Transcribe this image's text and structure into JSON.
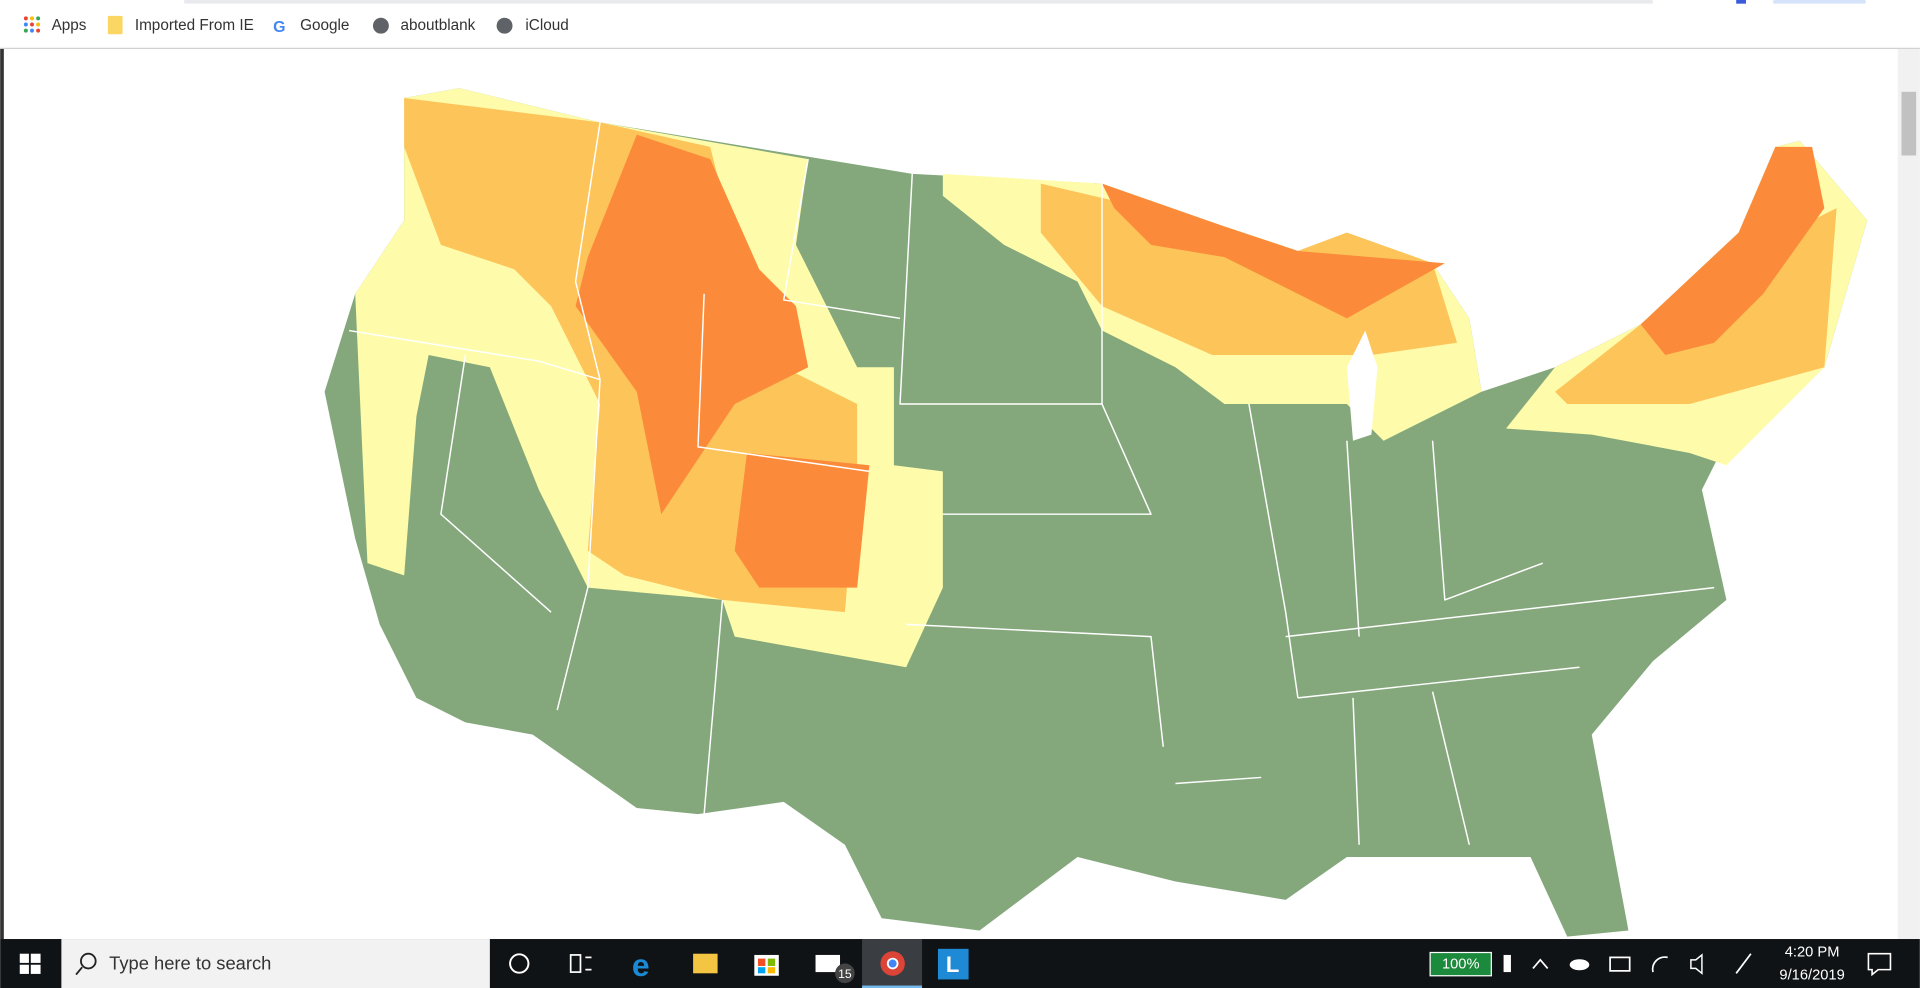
{
  "bookmarks": [
    {
      "label": "Apps"
    },
    {
      "label": "Imported From IE"
    },
    {
      "label": "Google"
    },
    {
      "label": "aboutblank"
    },
    {
      "label": "iCloud"
    }
  ],
  "taskbar": {
    "search_placeholder": "Type here to search",
    "badge": "15",
    "battery": "100%",
    "time": "4:20 PM",
    "date": "9/16/2019"
  }
}
